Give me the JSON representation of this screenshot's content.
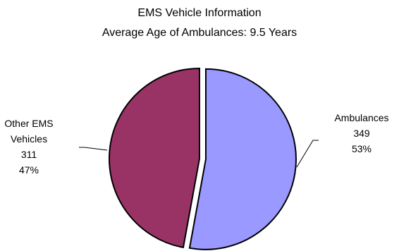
{
  "chart_data": {
    "type": "pie",
    "title": "EMS Vehicle Information",
    "subtitle": "Average Age of Ambulances: 9.5 Years",
    "slices": [
      {
        "name_lines": [
          "Ambulances"
        ],
        "value": 349,
        "value_label": "349",
        "percent": 53,
        "percent_label": "53%",
        "color": "#9999ff",
        "exploded": true
      },
      {
        "name_lines": [
          "Other EMS",
          "Vehicles"
        ],
        "value": 311,
        "value_label": "311",
        "percent": 47,
        "percent_label": "47%",
        "color": "#993366",
        "exploded": false
      }
    ],
    "outline_color": "#000000",
    "legend": "none"
  }
}
